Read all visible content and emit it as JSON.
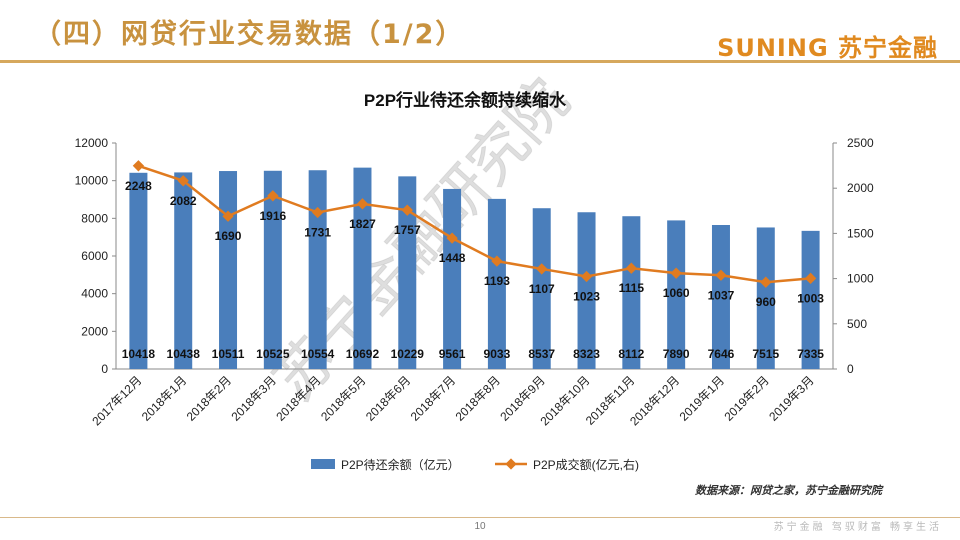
{
  "header": {
    "title": "（四）网贷行业交易数据（1/2）",
    "brand": "SUNING 苏宁金融"
  },
  "chart_data": {
    "type": "bar",
    "title": "P2P行业待还余额持续缩水",
    "categories": [
      "2017年12月",
      "2018年1月",
      "2018年2月",
      "2018年3月",
      "2018年4月",
      "2018年5月",
      "2018年6月",
      "2018年7月",
      "2018年8月",
      "2018年9月",
      "2018年10月",
      "2018年11月",
      "2018年12月",
      "2019年1月",
      "2019年2月",
      "2019年3月"
    ],
    "series": [
      {
        "name": "P2P待还余额（亿元）",
        "type": "bar",
        "axis": "left",
        "color": "#4a7ebb",
        "values": [
          10418,
          10438,
          10511,
          10525,
          10554,
          10692,
          10229,
          9561,
          9033,
          8537,
          8323,
          8112,
          7890,
          7646,
          7515,
          7335
        ]
      },
      {
        "name": "P2P成交额(亿元,右)",
        "type": "line",
        "axis": "right",
        "color": "#e07b20",
        "values": [
          2248,
          2082,
          1690,
          1916,
          1731,
          1827,
          1757,
          1448,
          1193,
          1107,
          1023,
          1115,
          1060,
          1037,
          960,
          1003
        ]
      }
    ],
    "y_left": {
      "min": 0,
      "max": 12000,
      "step": 2000,
      "ticks": [
        "0",
        "2000",
        "4000",
        "6000",
        "8000",
        "10000",
        "12000"
      ]
    },
    "y_right": {
      "min": 0,
      "max": 2500,
      "step": 500,
      "ticks": [
        "0",
        "500",
        "1000",
        "1500",
        "2000",
        "2500"
      ]
    },
    "legend_position": "bottom",
    "grid": false
  },
  "watermark": "苏宁金融研究院",
  "source_note": "数据来源：网贷之家，苏宁金融研究院",
  "page_number": "10",
  "slogan": "苏宁金融  驾驭财富  畅享生活"
}
